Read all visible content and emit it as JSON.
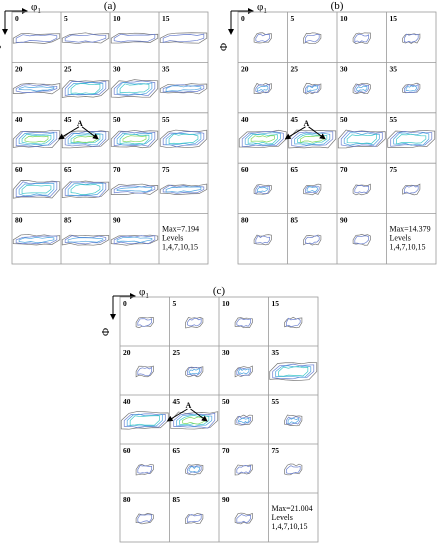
{
  "panels": [
    {
      "title": "(a)",
      "axis_x": {
        "symbol": "φ",
        "subscript": "1"
      },
      "axis_y": "Φ",
      "cells": [
        "0",
        "5",
        "10",
        "15",
        "20",
        "25",
        "30",
        "35",
        "40",
        "45",
        "50",
        "55",
        "60",
        "65",
        "70",
        "75",
        "80",
        "85",
        "90"
      ],
      "annotation": "A",
      "max": "Max=7.194",
      "levels_title": "Levels",
      "levels": "1,4,7,10,15"
    },
    {
      "title": "(b)",
      "axis_x": {
        "symbol": "φ",
        "subscript": "1"
      },
      "axis_y": "Φ",
      "cells": [
        "0",
        "5",
        "10",
        "15",
        "20",
        "25",
        "30",
        "35",
        "40",
        "45",
        "50",
        "55",
        "60",
        "65",
        "70",
        "75",
        "80",
        "85",
        "90"
      ],
      "annotation": "A",
      "max": "Max=14.379",
      "levels_title": "Levels",
      "levels": "1,4,7,10,15"
    },
    {
      "title": "(c)",
      "axis_x": {
        "symbol": "φ",
        "subscript": "1"
      },
      "axis_y": "Φ",
      "cells": [
        "0",
        "5",
        "10",
        "15",
        "20",
        "25",
        "30",
        "35",
        "40",
        "45",
        "50",
        "55",
        "60",
        "65",
        "70",
        "75",
        "80",
        "85",
        "90"
      ],
      "annotation": "A",
      "max": "Max=21.004",
      "levels_title": "Levels",
      "levels": "1,4,7,10,15"
    }
  ]
}
